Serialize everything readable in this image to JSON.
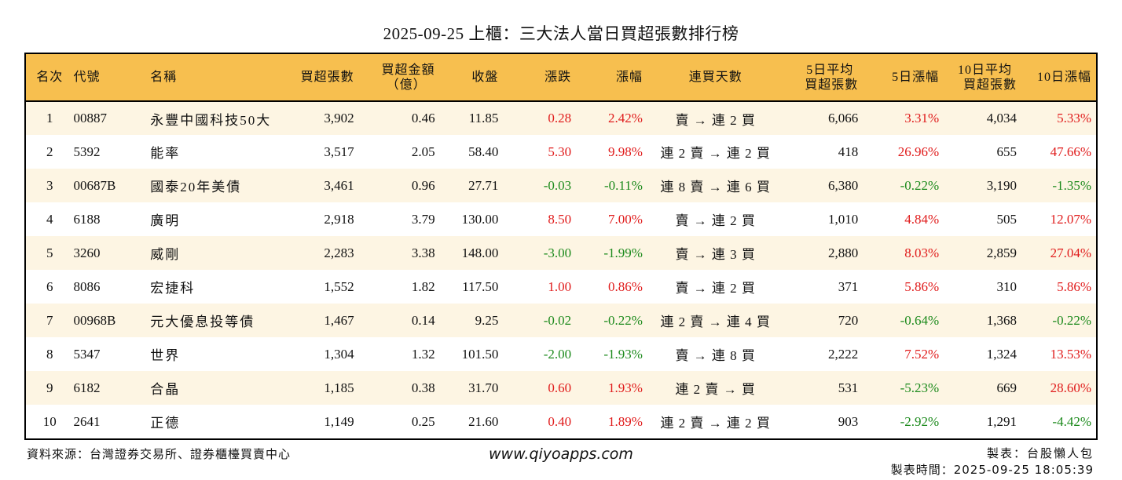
{
  "title": "2025-09-25 上櫃：三大法人當日買超張數排行榜",
  "table": {
    "columns": [
      {
        "key": "rank",
        "label": "名次"
      },
      {
        "key": "code",
        "label": "代號"
      },
      {
        "key": "name",
        "label": "名稱"
      },
      {
        "key": "buy_lots",
        "label": "買超張數"
      },
      {
        "key": "buy_amount",
        "label": "買超金額",
        "label2": "（億）"
      },
      {
        "key": "close",
        "label": "收盤"
      },
      {
        "key": "change",
        "label": "漲跌"
      },
      {
        "key": "change_pct",
        "label": "漲幅"
      },
      {
        "key": "streak",
        "label": "連買天數"
      },
      {
        "key": "avg5",
        "label": "5日平均",
        "label2": "買超張數"
      },
      {
        "key": "pct5",
        "label": "5日漲幅"
      },
      {
        "key": "avg10",
        "label": "10日平均",
        "label2": "買超張數"
      },
      {
        "key": "pct10",
        "label": "10日漲幅"
      }
    ],
    "rows": [
      {
        "rank": "1",
        "code": "00887",
        "name": "永豐中國科技50大",
        "buy_lots": "3,902",
        "buy_amount": "0.46",
        "close": "11.85",
        "change": "0.28",
        "change_pct": "2.42%",
        "streak": "賣 → 連 2 買",
        "avg5": "6,066",
        "pct5": "3.31%",
        "avg10": "4,034",
        "pct10": "5.33%"
      },
      {
        "rank": "2",
        "code": "5392",
        "name": "能率",
        "buy_lots": "3,517",
        "buy_amount": "2.05",
        "close": "58.40",
        "change": "5.30",
        "change_pct": "9.98%",
        "streak": "連 2 賣 → 連 2 買",
        "avg5": "418",
        "pct5": "26.96%",
        "avg10": "655",
        "pct10": "47.66%"
      },
      {
        "rank": "3",
        "code": "00687B",
        "name": "國泰20年美債",
        "buy_lots": "3,461",
        "buy_amount": "0.96",
        "close": "27.71",
        "change": "-0.03",
        "change_pct": "-0.11%",
        "streak": "連 8 賣 → 連 6 買",
        "avg5": "6,380",
        "pct5": "-0.22%",
        "avg10": "3,190",
        "pct10": "-1.35%"
      },
      {
        "rank": "4",
        "code": "6188",
        "name": "廣明",
        "buy_lots": "2,918",
        "buy_amount": "3.79",
        "close": "130.00",
        "change": "8.50",
        "change_pct": "7.00%",
        "streak": "賣 → 連 2 買",
        "avg5": "1,010",
        "pct5": "4.84%",
        "avg10": "505",
        "pct10": "12.07%"
      },
      {
        "rank": "5",
        "code": "3260",
        "name": "威剛",
        "buy_lots": "2,283",
        "buy_amount": "3.38",
        "close": "148.00",
        "change": "-3.00",
        "change_pct": "-1.99%",
        "streak": "賣 → 連 3 買",
        "avg5": "2,880",
        "pct5": "8.03%",
        "avg10": "2,859",
        "pct10": "27.04%"
      },
      {
        "rank": "6",
        "code": "8086",
        "name": "宏捷科",
        "buy_lots": "1,552",
        "buy_amount": "1.82",
        "close": "117.50",
        "change": "1.00",
        "change_pct": "0.86%",
        "streak": "賣 → 連 2 買",
        "avg5": "371",
        "pct5": "5.86%",
        "avg10": "310",
        "pct10": "5.86%"
      },
      {
        "rank": "7",
        "code": "00968B",
        "name": "元大優息投等債",
        "buy_lots": "1,467",
        "buy_amount": "0.14",
        "close": "9.25",
        "change": "-0.02",
        "change_pct": "-0.22%",
        "streak": "連 2 賣 → 連 4 買",
        "avg5": "720",
        "pct5": "-0.64%",
        "avg10": "1,368",
        "pct10": "-0.22%"
      },
      {
        "rank": "8",
        "code": "5347",
        "name": "世界",
        "buy_lots": "1,304",
        "buy_amount": "1.32",
        "close": "101.50",
        "change": "-2.00",
        "change_pct": "-1.93%",
        "streak": "賣 → 連 8 買",
        "avg5": "2,222",
        "pct5": "7.52%",
        "avg10": "1,324",
        "pct10": "13.53%"
      },
      {
        "rank": "9",
        "code": "6182",
        "name": "合晶",
        "buy_lots": "1,185",
        "buy_amount": "0.38",
        "close": "31.70",
        "change": "0.60",
        "change_pct": "1.93%",
        "streak": "連 2 賣 → 買",
        "avg5": "531",
        "pct5": "-5.23%",
        "avg10": "669",
        "pct10": "28.60%"
      },
      {
        "rank": "10",
        "code": "2641",
        "name": "正德",
        "buy_lots": "1,149",
        "buy_amount": "0.25",
        "close": "21.60",
        "change": "0.40",
        "change_pct": "1.89%",
        "streak": "連 2 賣 → 連 2 買",
        "avg5": "903",
        "pct5": "-2.92%",
        "avg10": "1,291",
        "pct10": "-4.42%"
      }
    ]
  },
  "colors": {
    "header_bg": "#F7BF4F",
    "row_alt_bg": "#FDF5E3",
    "up": "#E01B1B",
    "down": "#1C8A1C"
  },
  "footer": {
    "source": "資料來源：台灣證券交易所、證券櫃檯買賣中心",
    "website": "www.qiyoapps.com",
    "maker": "製表：台股懶人包",
    "made_time": "製表時間：2025-09-25 18:05:39"
  }
}
